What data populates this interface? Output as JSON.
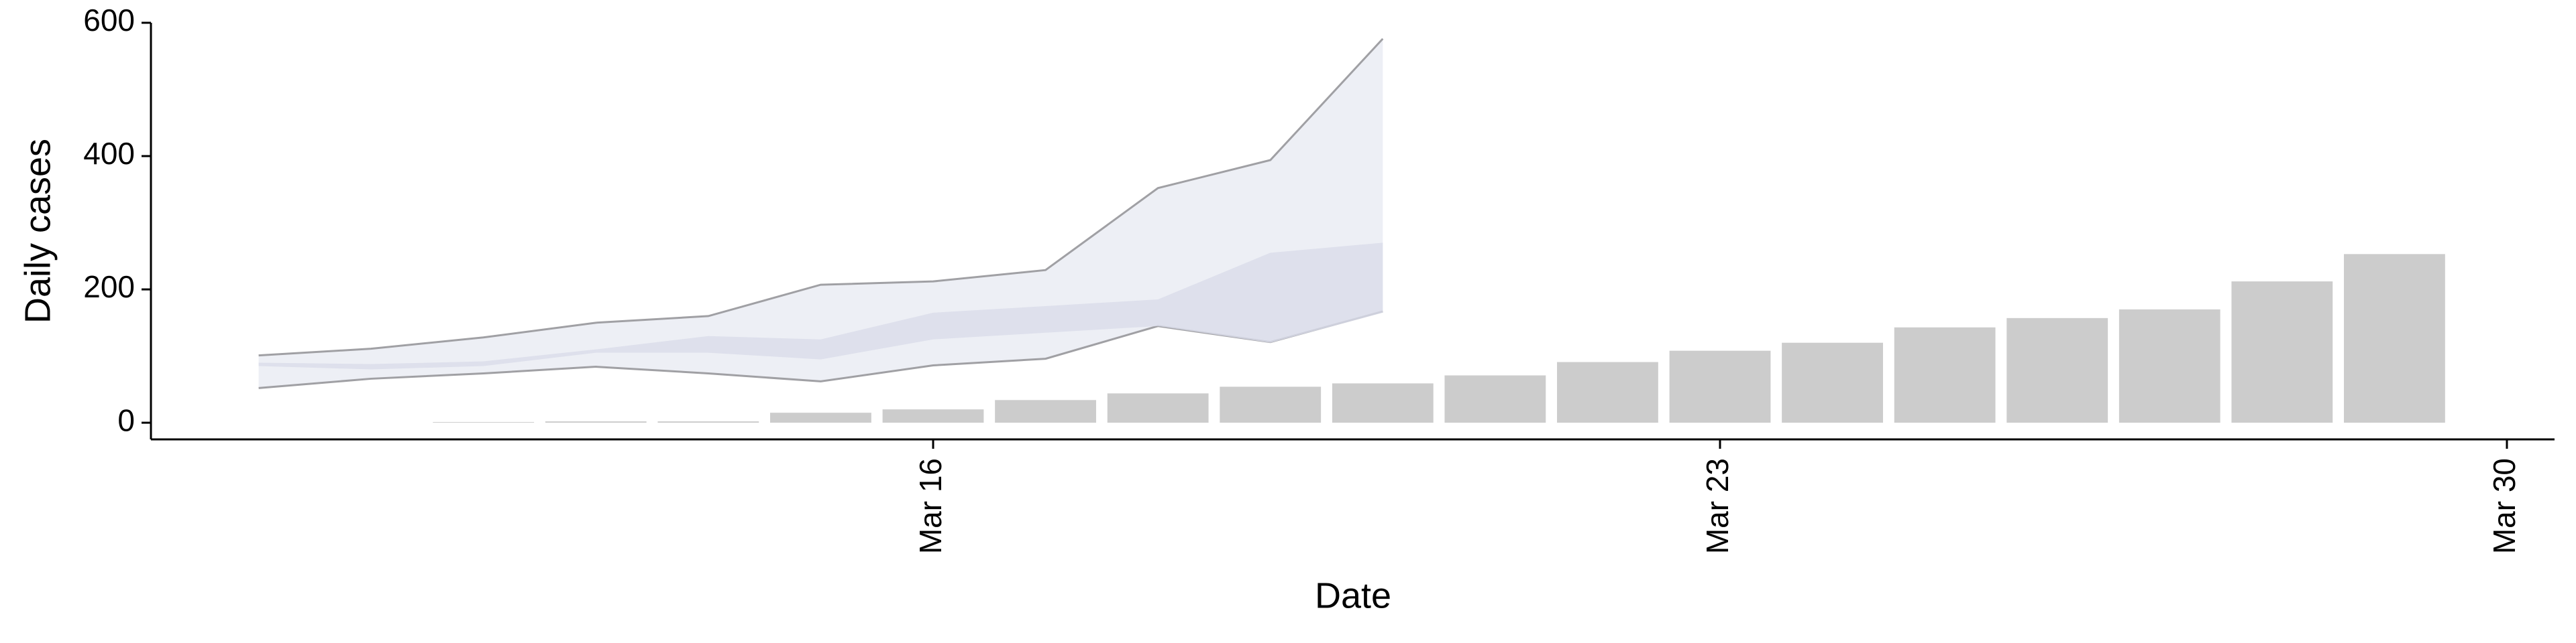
{
  "chart_data": {
    "type": "bar",
    "x_label": "Date",
    "y_label": "Daily cases",
    "categories": [
      "Mar 12",
      "Mar 13",
      "Mar 14",
      "Mar 15",
      "Mar 16",
      "Mar 17",
      "Mar 18",
      "Mar 19",
      "Mar 20",
      "Mar 21",
      "Mar 22",
      "Mar 23",
      "Mar 24",
      "Mar 25",
      "Mar 26",
      "Mar 27",
      "Mar 28",
      "Mar 29"
    ],
    "values": [
      1,
      2,
      2,
      15,
      20,
      34,
      44,
      54,
      59,
      71,
      91,
      108,
      120,
      143,
      157,
      170,
      212,
      253
    ],
    "color": "#cccccc",
    "bands": [
      {
        "x": [
          "Mar 10",
          "Mar 11",
          "Mar 12",
          "Mar 13",
          "Mar 14",
          "Mar 15",
          "Mar 16",
          "Mar 17",
          "Mar 18",
          "Mar 19",
          "Mar 20"
        ],
        "lower": [
          52,
          66,
          74,
          84,
          74,
          62,
          86,
          96,
          145,
          121,
          167
        ],
        "upper": [
          101,
          111,
          128,
          150,
          160,
          207,
          212,
          229,
          352,
          394,
          576
        ],
        "color": "#e9ebf2",
        "line_color": "#a0a0a4"
      },
      {
        "x": [
          "Mar 10",
          "Mar 11",
          "Mar 12",
          "Mar 13",
          "Mar 14",
          "Mar 15",
          "Mar 16",
          "Mar 17",
          "Mar 18",
          "Mar 19",
          "Mar 20"
        ],
        "lower": [
          85,
          80,
          85,
          105,
          105,
          95,
          125,
          135,
          145,
          120,
          165
        ],
        "upper": [
          90,
          88,
          92,
          110,
          130,
          125,
          165,
          175,
          185,
          255,
          270
        ],
        "color": "#dadcea"
      }
    ],
    "xlim": [
      "Mar 9",
      "Mar 30"
    ],
    "xticks": [
      "Mar 16",
      "Mar 23",
      "Mar 30"
    ],
    "ylim": [
      -25,
      600
    ],
    "yticks": [
      0,
      200,
      400,
      600
    ]
  }
}
